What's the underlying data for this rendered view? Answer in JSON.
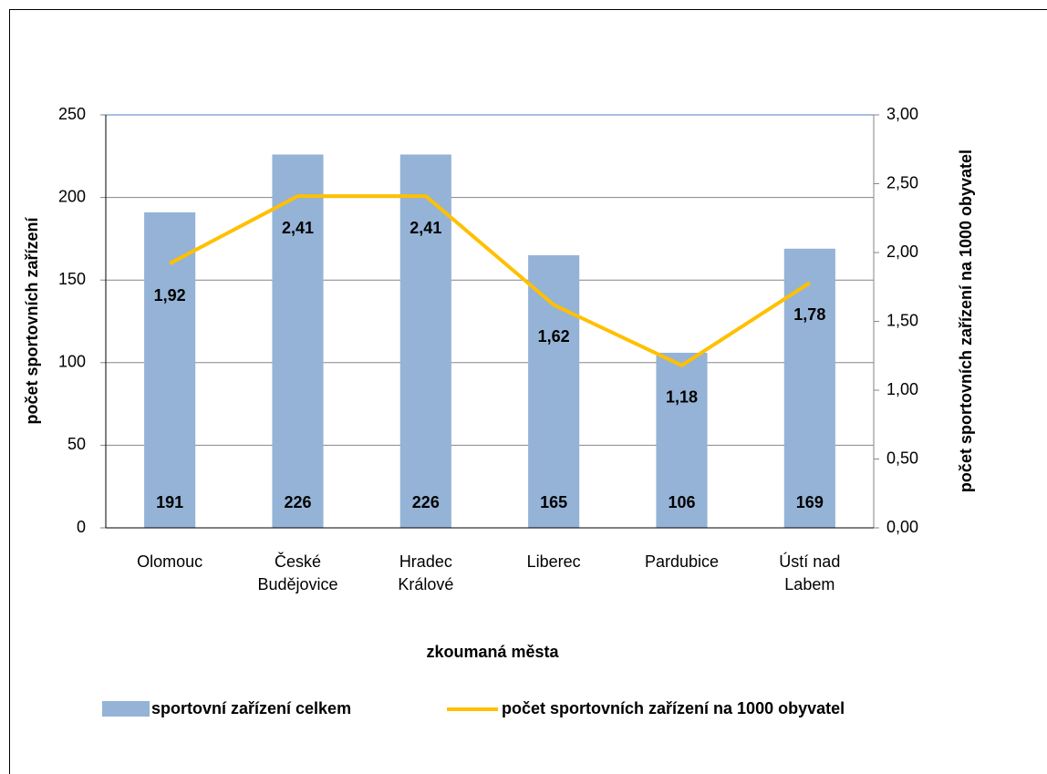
{
  "chart_data": {
    "type": "bar",
    "x_label": "zkoumaná města",
    "y_label": "počet sportovních zařízení",
    "y2_label": "počet sportovních zařízení na 1000 obyvatel",
    "categories": [
      "Olomouc",
      "České Budějovice",
      "Hradec Králové",
      "Liberec",
      "Pardubice",
      "Ústí nad Labem"
    ],
    "series": [
      {
        "name": "sportovní zařízení celkem",
        "type": "bar",
        "color": "#95b3d7",
        "values": [
          191,
          226,
          226,
          165,
          106,
          169
        ]
      },
      {
        "name": "počet sportovních zařízení na 1000 obyvatel",
        "type": "line",
        "axis": "y2",
        "color": "#ffc000",
        "values": [
          1.92,
          2.41,
          2.41,
          1.62,
          1.18,
          1.78
        ],
        "value_labels": [
          "1,92",
          "2,41",
          "2,41",
          "1,62",
          "1,18",
          "1,78"
        ]
      }
    ],
    "ylim": [
      0,
      250
    ],
    "yticks": [
      0,
      50,
      100,
      150,
      200,
      250
    ],
    "y2lim": [
      0,
      3
    ],
    "y2ticks": [
      {
        "value": 0,
        "label": "0,00"
      },
      {
        "value": 0.5,
        "label": "0,50"
      },
      {
        "value": 1,
        "label": "1,00"
      },
      {
        "value": 1.5,
        "label": "1,50"
      },
      {
        "value": 2,
        "label": "2,00"
      },
      {
        "value": 2.5,
        "label": "2,50"
      },
      {
        "value": 3,
        "label": "3,00"
      }
    ],
    "grid": true,
    "legend": "bottom"
  }
}
